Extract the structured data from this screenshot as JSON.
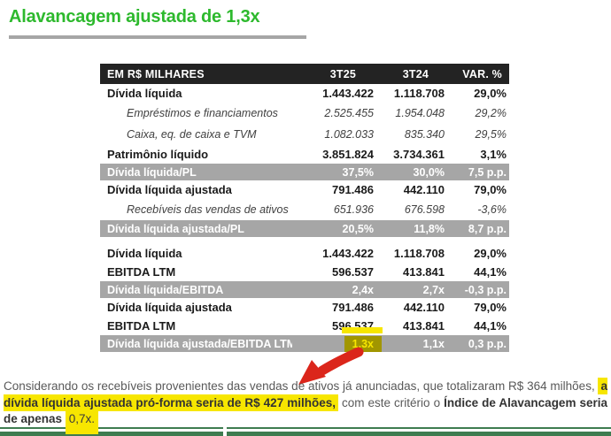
{
  "title": "Alavancagem ajustada de 1,3x",
  "table": {
    "headers": {
      "label": "EM R$ MILHARES",
      "c1": "3T25",
      "c2": "3T24",
      "c3": "VAR. %"
    },
    "rows": [
      {
        "label": "Dívida líquida",
        "v1": "1.443.422",
        "v2": "1.118.708",
        "var": "29,0%",
        "style": "bold"
      },
      {
        "label": "Empréstimos e financiamentos",
        "v1": "2.525.455",
        "v2": "1.954.048",
        "var": "29,2%",
        "style": "italic"
      },
      {
        "label": "Caixa, eq. de caixa e TVM",
        "v1": "1.082.033",
        "v2": "835.340",
        "var": "29,5%",
        "style": "italic"
      },
      {
        "label": "Patrimônio líquido",
        "v1": "3.851.824",
        "v2": "3.734.361",
        "var": "3,1%",
        "style": "bold"
      },
      {
        "label": "Dívida líquida/PL",
        "v1": "37,5%",
        "v2": "30,0%",
        "var": "7,5 p.p.",
        "style": "gray"
      },
      {
        "label": "Dívida líquida ajustada",
        "v1": "791.486",
        "v2": "442.110",
        "var": "79,0%",
        "style": "bold"
      },
      {
        "label": "Recebíveis das vendas de ativos",
        "v1": "651.936",
        "v2": "676.598",
        "var": "-3,6%",
        "style": "italic"
      },
      {
        "label": "Dívida líquida ajustada/PL",
        "v1": "20,5%",
        "v2": "11,8%",
        "var": "8,7 p.p.",
        "style": "gray"
      },
      {
        "label": "Dívida líquida",
        "v1": "1.443.422",
        "v2": "1.118.708",
        "var": "29,0%",
        "style": "bold",
        "gap_before": true
      },
      {
        "label": "EBITDA LTM",
        "v1": "596.537",
        "v2": "413.841",
        "var": "44,1%",
        "style": "bold"
      },
      {
        "label": "Dívida líquida/EBITDA",
        "v1": "2,4x",
        "v2": "2,7x",
        "var": "-0,3 p.p.",
        "style": "gray"
      },
      {
        "label": "Dívida líquida ajustada",
        "v1": "791.486",
        "v2": "442.110",
        "var": "79,0%",
        "style": "bold"
      },
      {
        "label": "EBITDA LTM",
        "v1": "596.537",
        "v2": "413.841",
        "var": "44,1%",
        "style": "bold"
      },
      {
        "label": "Dívida líquida ajustada/EBITDA LTM",
        "v1": "1,3x",
        "v2": "1,1x",
        "var": "0,3 p.p.",
        "style": "gray",
        "highlight_v1": true
      }
    ]
  },
  "footnote": {
    "part1": "Considerando os recebíveis provenientes das vendas de ativos já anunciadas, que totalizaram R$ 364 milhões, ",
    "highlight1": "a dívida líquida ajustada pró-forma seria de R$ 427 milhões,",
    "part2": " com este critério o ",
    "bold1": "Índice de Alavancagem seria de apenas ",
    "highlight2": "0,7x."
  },
  "colors": {
    "title_green": "#2DB92D",
    "header_black": "#232323",
    "row_gray": "#A6A6A6",
    "highlight_yellow": "#F7E600",
    "highlight_olive": "#A19600",
    "arrow_red": "#DB261B",
    "bottom_rule_green": "#3E7C50"
  }
}
